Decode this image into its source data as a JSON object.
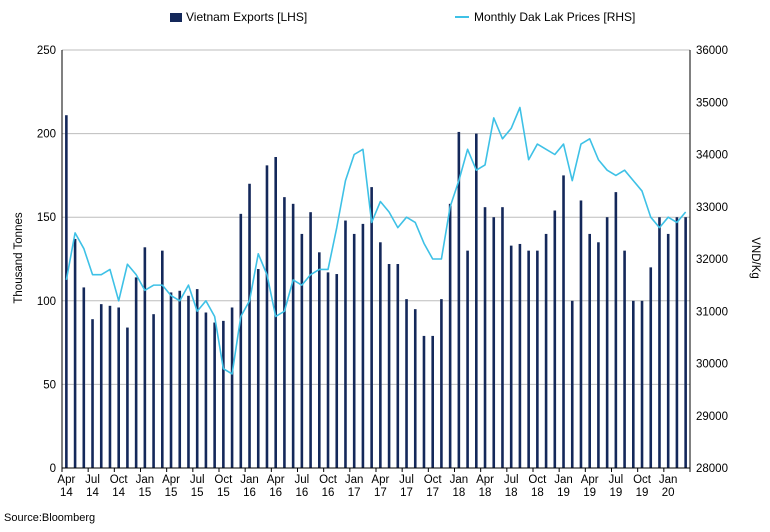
{
  "chart_data": {
    "type": "bar",
    "categories": [
      "Apr 14",
      "May 14",
      "Jun 14",
      "Jul 14",
      "Aug 14",
      "Sep 14",
      "Oct 14",
      "Nov 14",
      "Dec 14",
      "Jan 15",
      "Feb 15",
      "Mar 15",
      "Apr 15",
      "May 15",
      "Jun 15",
      "Jul 15",
      "Aug 15",
      "Sep 15",
      "Oct 15",
      "Nov 15",
      "Dec 15",
      "Jan 16",
      "Feb 16",
      "Mar 16",
      "Apr 16",
      "May 16",
      "Jun 16",
      "Jul 16",
      "Aug 16",
      "Sep 16",
      "Oct 16",
      "Nov 16",
      "Dec 16",
      "Jan 17",
      "Feb 17",
      "Mar 17",
      "Apr 17",
      "May 17",
      "Jun 17",
      "Jul 17",
      "Aug 17",
      "Sep 17",
      "Oct 17",
      "Nov 17",
      "Dec 17",
      "Jan 18",
      "Feb 18",
      "Mar 18",
      "Apr 18",
      "May 18",
      "Jun 18",
      "Jul 18",
      "Aug 18",
      "Sep 18",
      "Oct 18",
      "Nov 18",
      "Dec 18",
      "Jan 19",
      "Feb 19",
      "Mar 19",
      "Apr 19",
      "May 19",
      "Jun 19",
      "Jul 19",
      "Aug 19",
      "Sep 19",
      "Oct 19",
      "Nov 19",
      "Dec 19",
      "Jan 20",
      "Feb 20",
      "Mar 20"
    ],
    "series": [
      {
        "name": "Vietnam Exports [LHS]",
        "axis": "left",
        "render": "bar",
        "color": "#14285a",
        "values": [
          211,
          137,
          108,
          89,
          98,
          97,
          96,
          84,
          114,
          132,
          92,
          130,
          105,
          106,
          103,
          107,
          93,
          87,
          88,
          96,
          152,
          170,
          119,
          181,
          186,
          162,
          158,
          140,
          153,
          129,
          117,
          116,
          148,
          140,
          146,
          168,
          135,
          122,
          122,
          101,
          95,
          79,
          79,
          101,
          158,
          201,
          130,
          200,
          156,
          150,
          156,
          133,
          134,
          130,
          130,
          140,
          154,
          175,
          100,
          160,
          140,
          135,
          150,
          165,
          130,
          100,
          100,
          120,
          150,
          140,
          150,
          150
        ]
      },
      {
        "name": "Monthly Dak Lak Prices [RHS]",
        "axis": "right",
        "render": "line",
        "color": "#3ec1e6",
        "values": [
          31600,
          32500,
          32200,
          31700,
          31700,
          31800,
          31200,
          31900,
          31700,
          31400,
          31500,
          31500,
          31300,
          31200,
          31500,
          31000,
          31200,
          30900,
          29900,
          29800,
          30900,
          31200,
          32100,
          31700,
          30900,
          31000,
          31600,
          31500,
          31700,
          31800,
          31800,
          32600,
          33500,
          34000,
          34100,
          32700,
          33100,
          32900,
          32600,
          32800,
          32700,
          32300,
          32000,
          32000,
          33000,
          33500,
          34100,
          33700,
          33800,
          34700,
          34300,
          34500,
          34900,
          33900,
          34200,
          34100,
          34000,
          34200,
          33500,
          34200,
          34300,
          33900,
          33700,
          33600,
          33700,
          33500,
          33300,
          32800,
          32600,
          32800,
          32700,
          32900
        ]
      }
    ],
    "xtick_labels": [
      {
        "month": "Apr",
        "year": "14",
        "index": 0
      },
      {
        "month": "Jul",
        "year": "14",
        "index": 3
      },
      {
        "month": "Oct",
        "year": "14",
        "index": 6
      },
      {
        "month": "Jan",
        "year": "15",
        "index": 9
      },
      {
        "month": "Apr",
        "year": "15",
        "index": 12
      },
      {
        "month": "Jul",
        "year": "15",
        "index": 15
      },
      {
        "month": "Oct",
        "year": "15",
        "index": 18
      },
      {
        "month": "Jan",
        "year": "16",
        "index": 21
      },
      {
        "month": "Apr",
        "year": "16",
        "index": 24
      },
      {
        "month": "Jul",
        "year": "16",
        "index": 27
      },
      {
        "month": "Oct",
        "year": "16",
        "index": 30
      },
      {
        "month": "Jan",
        "year": "17",
        "index": 33
      },
      {
        "month": "Apr",
        "year": "17",
        "index": 36
      },
      {
        "month": "Jul",
        "year": "17",
        "index": 39
      },
      {
        "month": "Oct",
        "year": "17",
        "index": 42
      },
      {
        "month": "Jan",
        "year": "18",
        "index": 45
      },
      {
        "month": "Apr",
        "year": "18",
        "index": 48
      },
      {
        "month": "Jul",
        "year": "18",
        "index": 51
      },
      {
        "month": "Oct",
        "year": "18",
        "index": 54
      },
      {
        "month": "Jan",
        "year": "19",
        "index": 57
      },
      {
        "month": "Apr",
        "year": "19",
        "index": 60
      },
      {
        "month": "Jul",
        "year": "19",
        "index": 63
      },
      {
        "month": "Oct",
        "year": "19",
        "index": 66
      },
      {
        "month": "Jan",
        "year": "20",
        "index": 69
      }
    ],
    "left_axis": {
      "label": "Thousand Tonnes",
      "ylim": [
        0,
        250
      ],
      "ticks": [
        0,
        50,
        100,
        150,
        200,
        250
      ],
      "tick_labels": [
        "0",
        "50",
        "100",
        "150",
        "200",
        "250"
      ]
    },
    "right_axis": {
      "label": "VND/Kg",
      "ylim": [
        28000,
        36000
      ],
      "ticks": [
        28000,
        29000,
        30000,
        31000,
        32000,
        33000,
        34000,
        35000,
        36000
      ],
      "tick_labels": [
        "28000",
        "29000",
        "30000",
        "31000",
        "32000",
        "33000",
        "34000",
        "35000",
        "36000"
      ]
    },
    "grid": true,
    "legend_position": "top"
  },
  "legend": {
    "exports_label": "Vietnam Exports [LHS]",
    "prices_label": "Monthly Dak Lak Prices [RHS]"
  },
  "source": "Source:Bloomberg"
}
